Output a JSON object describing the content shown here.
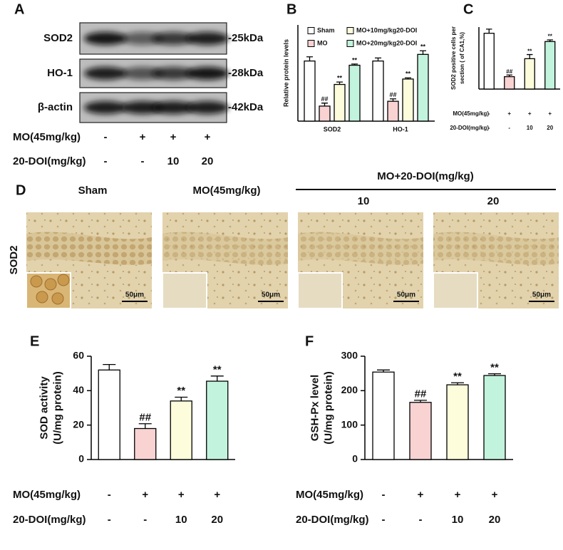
{
  "panel_a": {
    "label": "A",
    "bands": [
      "SOD2",
      "HO-1",
      "β-actin"
    ],
    "sizes": [
      "-25kDa",
      "-28kDa",
      "-42kDa"
    ],
    "conditions": [
      {
        "label": "MO(45mg/kg)",
        "entries": [
          "-",
          "+",
          "+",
          "+"
        ]
      },
      {
        "label": "20-DOI(mg/kg)",
        "entries": [
          "-",
          "-",
          "10",
          "20"
        ]
      }
    ]
  },
  "panel_d": {
    "label": "D",
    "row_label": "SOD2",
    "group_label": "MO+20-DOI(mg/kg)",
    "columns": [
      "Sham",
      "MO(45mg/kg)",
      "10",
      "20"
    ],
    "scale_bars": [
      "50μm",
      "50μm",
      "50μm",
      "50μm"
    ]
  },
  "chart_data": [
    {
      "type": "grouped_bar",
      "panel": "B",
      "ylabel": [
        "Relative protein levels"
      ],
      "categories": [
        "SOD2",
        "HO-1"
      ],
      "ylim": [
        0,
        1.6
      ],
      "series": [
        {
          "name": "Sham",
          "color": "#ffffff",
          "values": [
            1.0,
            1.0
          ],
          "errors": [
            0.07,
            0.05
          ],
          "annotations": [
            null,
            null
          ]
        },
        {
          "name": "MO",
          "color": "#f9d2d2",
          "values": [
            0.25,
            0.33
          ],
          "errors": [
            0.05,
            0.04
          ],
          "annotations": [
            "##",
            "##"
          ]
        },
        {
          "name": "MO+10mg/kg20-DOI",
          "color": "#fdfddc",
          "values": [
            0.61,
            0.7
          ],
          "errors": [
            0.04,
            0.02
          ],
          "annotations": [
            "**",
            "**"
          ]
        },
        {
          "name": "MO+20mg/kg20-DOI",
          "color": "#c2f3dd",
          "values": [
            0.93,
            1.11
          ],
          "errors": [
            0.02,
            0.06
          ],
          "annotations": [
            "**",
            "**"
          ]
        }
      ]
    },
    {
      "type": "bar",
      "panel": "C",
      "ylabel": [
        "SOD2 positive cells per",
        "section ( of CA1,%)"
      ],
      "ylim": [
        0,
        30
      ],
      "values": [
        27,
        6,
        14.7,
        23
      ],
      "errors": [
        2,
        0.8,
        2,
        0.8
      ],
      "annotations": [
        null,
        "##",
        "**",
        "**"
      ],
      "colors": [
        "#ffffff",
        "#f9d2d2",
        "#fdfddc",
        "#c2f3dd"
      ],
      "conditions": [
        {
          "label": "MO(45mg/kg)",
          "entries": [
            "-",
            "+",
            "+",
            "+"
          ]
        },
        {
          "label": "20-DOI(mg/kg)",
          "entries": [
            "-",
            "-",
            "10",
            "20"
          ]
        }
      ]
    },
    {
      "type": "bar",
      "panel": "E",
      "ylabel": [
        "SOD activity",
        "(U/mg protein)"
      ],
      "ylim": [
        0,
        60
      ],
      "yticks": [
        0,
        20,
        40,
        60
      ],
      "values": [
        52,
        18,
        34,
        45.5
      ],
      "errors": [
        3.2,
        2.8,
        2.2,
        3
      ],
      "annotations": [
        null,
        "##",
        "**",
        "**"
      ],
      "colors": [
        "#ffffff",
        "#f9d2d2",
        "#fdfddc",
        "#c2f3dd"
      ],
      "conditions": [
        {
          "label": "MO(45mg/kg)",
          "entries": [
            "-",
            "+",
            "+",
            "+"
          ]
        },
        {
          "label": "20-DOI(mg/kg)",
          "entries": [
            "-",
            "-",
            "10",
            "20"
          ]
        }
      ]
    },
    {
      "type": "bar",
      "panel": "F",
      "ylabel": [
        "GSH-Px level",
        "(U/mg protein)"
      ],
      "ylim": [
        0,
        300
      ],
      "yticks": [
        0,
        100,
        200,
        300
      ],
      "values": [
        254,
        166,
        217,
        244
      ],
      "errors": [
        6,
        6,
        6,
        5
      ],
      "annotations": [
        null,
        "##",
        "**",
        "**"
      ],
      "colors": [
        "#ffffff",
        "#f9d2d2",
        "#fdfddc",
        "#c2f3dd"
      ],
      "conditions": [
        {
          "label": "MO(45mg/kg)",
          "entries": [
            "-",
            "+",
            "+",
            "+"
          ]
        },
        {
          "label": "20-DOI(mg/kg)",
          "entries": [
            "-",
            "-",
            "10",
            "20"
          ]
        }
      ]
    }
  ]
}
